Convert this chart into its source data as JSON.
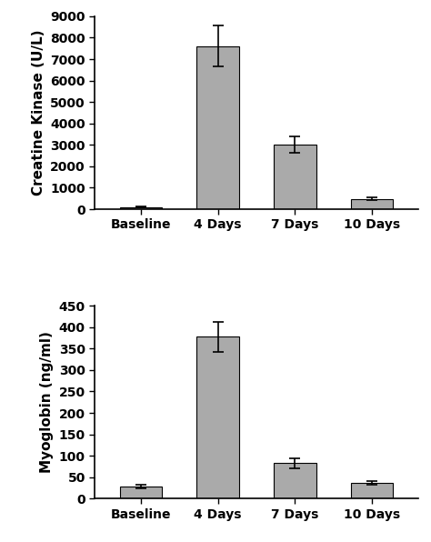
{
  "categories": [
    "Baseline",
    "4 Days",
    "7 Days",
    "10 Days"
  ],
  "ck_values": [
    100,
    7600,
    3000,
    480
  ],
  "ck_errors": [
    30,
    950,
    380,
    70
  ],
  "ck_ylabel": "Creatine Kinase (U/L)",
  "ck_ylim": [
    0,
    9000
  ],
  "ck_yticks": [
    0,
    1000,
    2000,
    3000,
    4000,
    5000,
    6000,
    7000,
    8000,
    9000
  ],
  "myo_values": [
    28,
    378,
    83,
    37
  ],
  "myo_errors": [
    5,
    35,
    12,
    5
  ],
  "myo_ylabel": "Myoglobin (ng/ml)",
  "myo_ylim": [
    0,
    450
  ],
  "myo_yticks": [
    0,
    50,
    100,
    150,
    200,
    250,
    300,
    350,
    400,
    450
  ],
  "bar_color": "#aaaaaa",
  "bar_edgecolor": "#000000",
  "bar_width": 0.55,
  "background_color": "#ffffff",
  "capsize": 4,
  "error_linewidth": 1.2,
  "font_size_label": 11,
  "font_size_tick": 10,
  "font_weight": "bold"
}
